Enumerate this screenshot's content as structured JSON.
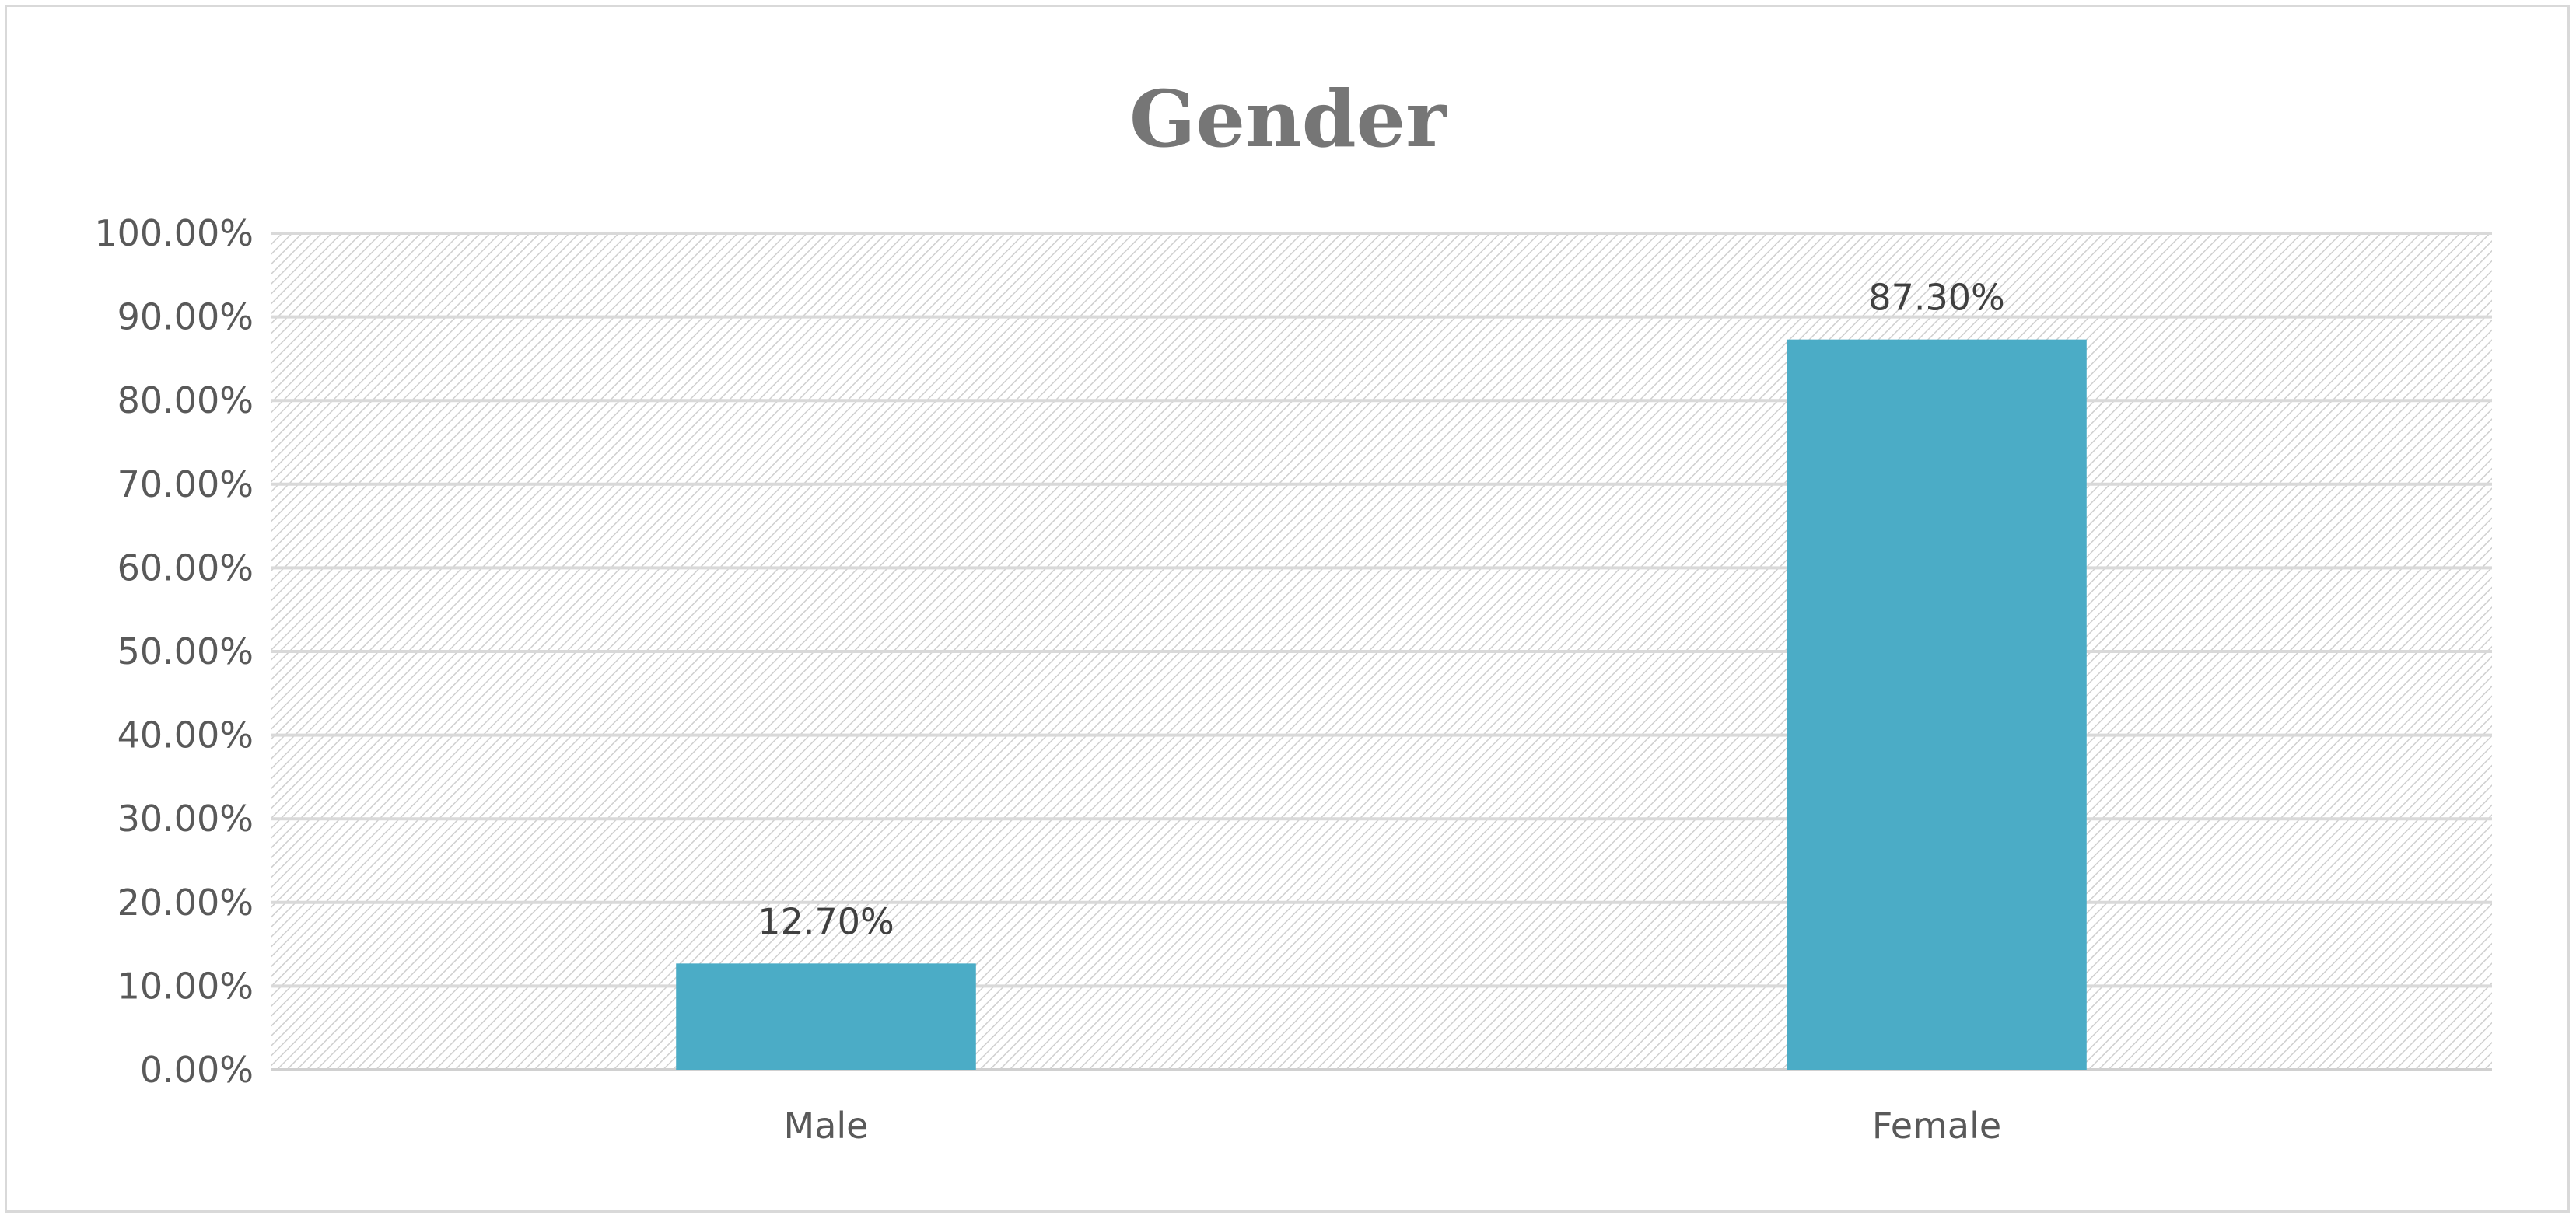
{
  "chart_data": {
    "type": "bar",
    "title": "Gender",
    "xlabel": "",
    "ylabel": "",
    "categories": [
      "Male",
      "Female"
    ],
    "values": [
      12.7,
      87.3
    ],
    "data_labels": [
      "12.70%",
      "87.30%"
    ],
    "ylim": [
      0,
      100
    ],
    "yticks": [
      0,
      10,
      20,
      30,
      40,
      50,
      60,
      70,
      80,
      90,
      100
    ],
    "ytick_labels": [
      "0.00%",
      "10.00%",
      "20.00%",
      "30.00%",
      "40.00%",
      "50.00%",
      "60.00%",
      "70.00%",
      "80.00%",
      "90.00%",
      "100.00%"
    ],
    "grid": true,
    "legend": "none",
    "bar_color": "#4BACC6",
    "plot_background": "hatched light gray"
  }
}
